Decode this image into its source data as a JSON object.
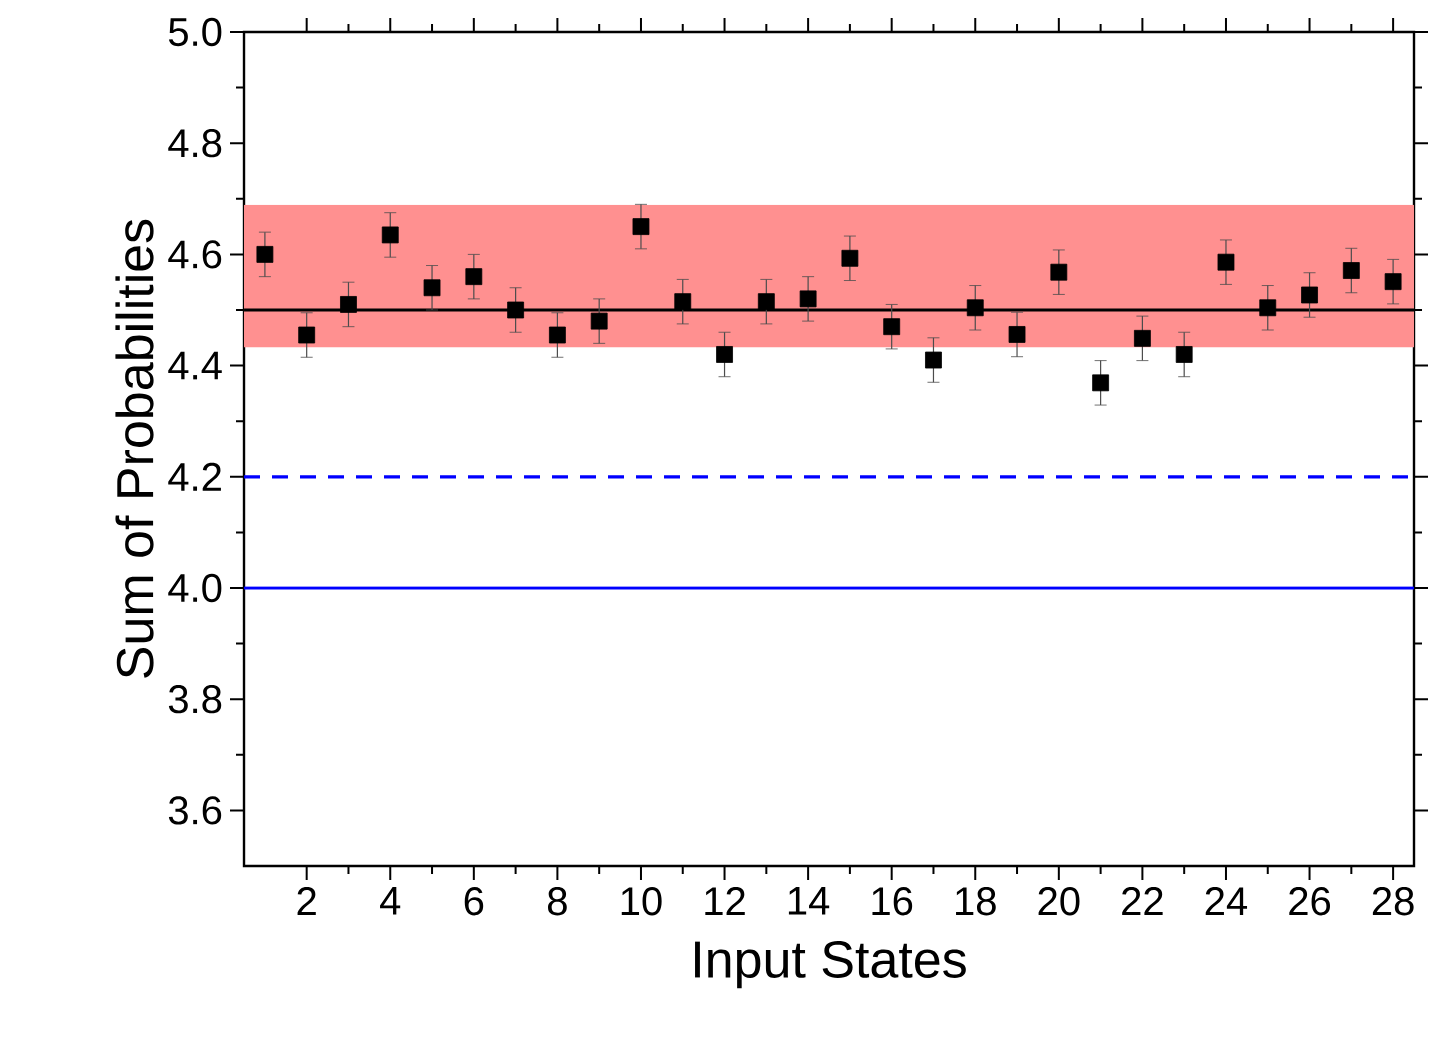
{
  "chart_data": {
    "type": "scatter",
    "xlabel": "Input States",
    "ylabel": "Sum of Probabilities",
    "x": [
      1,
      2,
      3,
      4,
      5,
      6,
      7,
      8,
      9,
      10,
      11,
      12,
      13,
      14,
      15,
      16,
      17,
      18,
      19,
      20,
      21,
      22,
      23,
      24,
      25,
      26,
      27,
      28
    ],
    "series": [
      {
        "color": "#000000",
        "values": [
          4.6,
          4.455,
          4.51,
          4.635,
          4.54,
          4.56,
          4.5,
          4.455,
          4.48,
          4.65,
          4.515,
          4.42,
          4.515,
          4.52,
          4.593,
          4.47,
          4.41,
          4.504,
          4.456,
          4.568,
          4.369,
          4.449,
          4.42,
          4.586,
          4.504,
          4.527,
          4.571,
          4.551
        ],
        "errors": [
          0.04,
          0.04,
          0.04,
          0.04,
          0.04,
          0.04,
          0.04,
          0.04,
          0.04,
          0.04,
          0.04,
          0.04,
          0.04,
          0.04,
          0.04,
          0.04,
          0.04,
          0.04,
          0.04,
          0.04,
          0.04,
          0.04,
          0.04,
          0.04,
          0.04,
          0.04,
          0.04,
          0.04
        ]
      }
    ],
    "marker": "square",
    "xlim": [
      0.5,
      28.5
    ],
    "xticks": [
      2,
      4,
      6,
      8,
      10,
      12,
      14,
      16,
      18,
      20,
      22,
      24,
      26,
      28
    ],
    "ylim": [
      3.5,
      5.0
    ],
    "yticks": [
      3.6,
      3.8,
      {
        "value": 4.0,
        "label": "4.0"
      },
      4.2,
      4.4,
      4.6,
      4.8,
      {
        "value": 5.0,
        "label": "5.0"
      }
    ],
    "bands": [
      {
        "axis": "y",
        "from": 4.435,
        "to": 4.687,
        "color": "#ff9090"
      }
    ],
    "ref_lines": [
      {
        "axis": "y",
        "value": 4.5,
        "color": "#000000",
        "line_style": "solid"
      },
      {
        "axis": "y",
        "value": 4.2,
        "color": "#0000ff",
        "line_style": "dashed"
      },
      {
        "axis": "y",
        "value": 4.0,
        "color": "#0000ff",
        "line_style": "solid"
      }
    ]
  }
}
